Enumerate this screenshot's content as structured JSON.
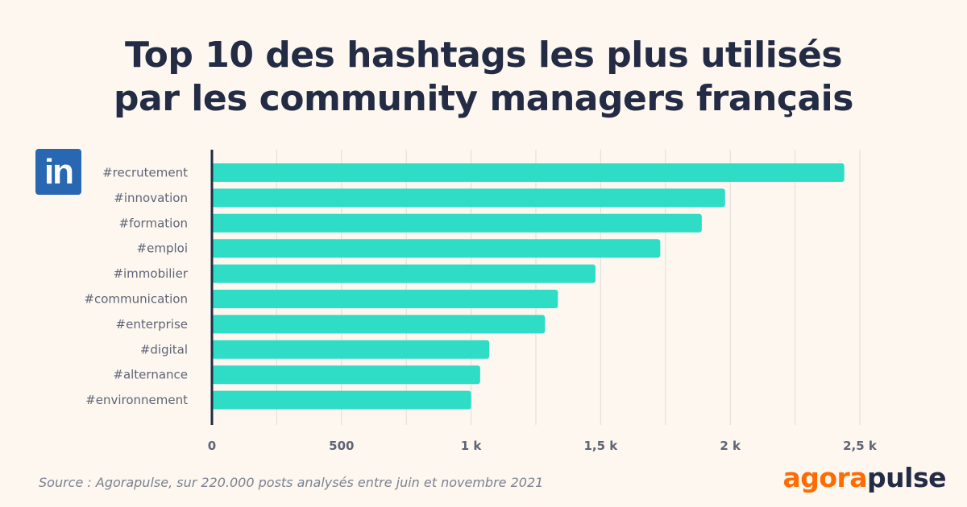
{
  "title": {
    "line1": "Top 10 des hashtags les plus utilisés",
    "line2": "par les community managers français"
  },
  "logo": {
    "icon": "linkedin-icon",
    "text": "in",
    "color": "#2867b2"
  },
  "chart_data": {
    "type": "bar",
    "orientation": "horizontal",
    "categories": [
      "#recrutement",
      "#innovation",
      "#formation",
      "#emploi",
      "#immobilier",
      "#communication",
      "#enterprise",
      "#digital",
      "#alternance",
      "#environnement"
    ],
    "values": [
      2440,
      1980,
      1890,
      1730,
      1480,
      1335,
      1285,
      1070,
      1035,
      1000
    ],
    "xlim": [
      0,
      2500
    ],
    "xticks": [
      0,
      500,
      1000,
      1500,
      2000,
      2500
    ],
    "xtick_labels": [
      "0",
      "500",
      "1 k",
      "1,5 k",
      "2 k",
      "2,5 k"
    ],
    "grid": true,
    "bar_color": "#2fdcc6"
  },
  "source": "Source : Agorapulse, sur 220.000 posts analysés entre juin et novembre 2021",
  "brand": {
    "part1": "agora",
    "part2": "pulse",
    "color1": "#ff6b00",
    "color2": "#232c44"
  }
}
